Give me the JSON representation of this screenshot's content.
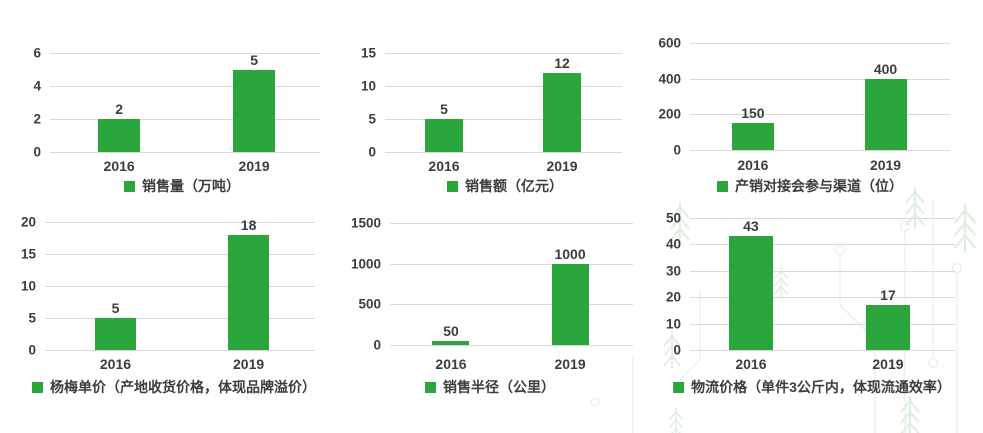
{
  "accent_color": "#2aa63c",
  "text_color": "#3d3d3d",
  "gridline_color": "#d9d9d9",
  "chart_data": [
    {
      "type": "bar",
      "categories": [
        "2016",
        "2019"
      ],
      "values": [
        2,
        5
      ],
      "legend": "销售量（万吨）",
      "ylim": [
        0,
        6
      ],
      "yticks": [
        0,
        2,
        4,
        6
      ]
    },
    {
      "type": "bar",
      "categories": [
        "2016",
        "2019"
      ],
      "values": [
        5,
        12
      ],
      "legend": "销售额（亿元）",
      "ylim": [
        0,
        15
      ],
      "yticks": [
        0,
        5,
        10,
        15
      ]
    },
    {
      "type": "bar",
      "categories": [
        "2016",
        "2019"
      ],
      "values": [
        150,
        400
      ],
      "legend": "产销对接会参与渠道（位）",
      "ylim": [
        0,
        600
      ],
      "yticks": [
        0,
        200,
        400,
        600
      ]
    },
    {
      "type": "bar",
      "categories": [
        "2016",
        "2019"
      ],
      "values": [
        5,
        18
      ],
      "legend": "杨梅单价（产地收货价格，体现品牌溢价）",
      "ylim": [
        0,
        20
      ],
      "yticks": [
        0,
        5,
        10,
        15,
        20
      ]
    },
    {
      "type": "bar",
      "categories": [
        "2016",
        "2019"
      ],
      "values": [
        50,
        1000
      ],
      "legend": "销售半径（公里）",
      "ylim": [
        0,
        1500
      ],
      "yticks": [
        0,
        500,
        1000,
        1500
      ]
    },
    {
      "type": "bar",
      "categories": [
        "2016",
        "2019"
      ],
      "values": [
        43,
        17
      ],
      "legend": "物流价格（单件3公斤内，体现流通效率）",
      "ylim": [
        0,
        50
      ],
      "yticks": [
        0,
        10,
        20,
        30,
        40,
        50
      ]
    }
  ]
}
